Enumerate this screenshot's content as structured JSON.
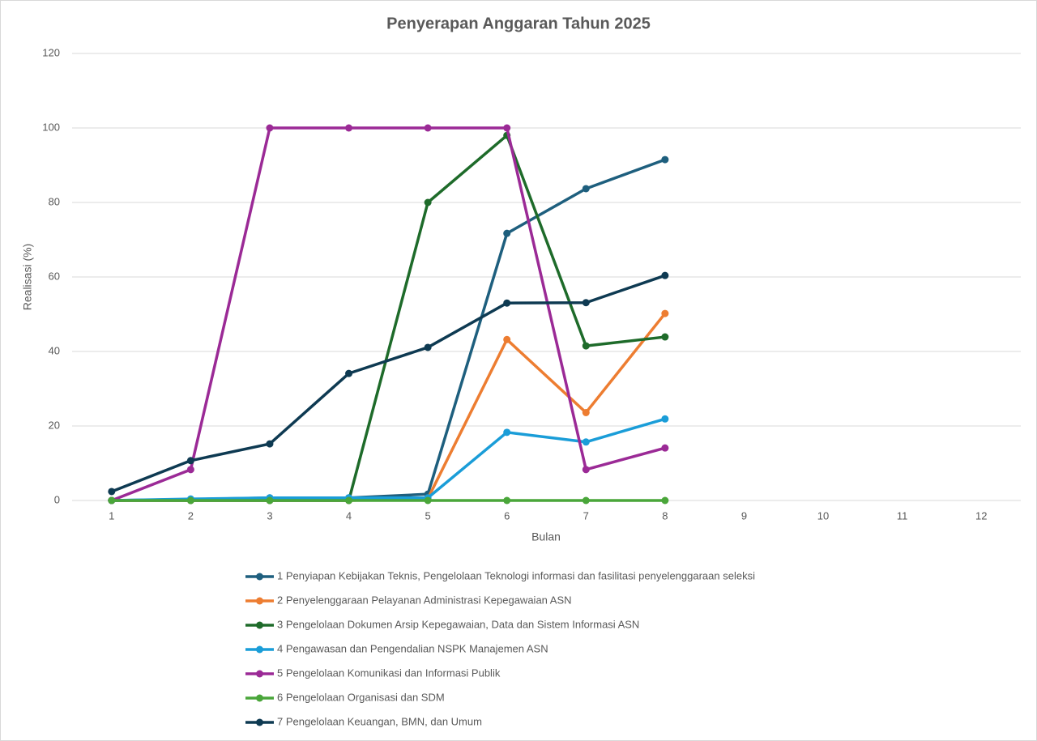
{
  "chart_data": {
    "type": "line",
    "title": "Penyerapan Anggaran Tahun 2025",
    "x_label": "Bulan",
    "y_label": "Realisasi (%)",
    "categories": [
      "1",
      "2",
      "3",
      "4",
      "5",
      "6",
      "7",
      "8",
      "9",
      "10",
      "11",
      "12"
    ],
    "ylim": [
      0,
      120
    ],
    "yticks": [
      0,
      20,
      40,
      60,
      80,
      100,
      120
    ],
    "grid": true,
    "legend": "bottom",
    "series": [
      {
        "name": "1 Penyiapan Kebijakan Teknis, Pengelolaan Teknologi informasi dan fasilitasi penyelenggaraan seleksi",
        "color": "#1e5f7e",
        "values": [
          0,
          0.3,
          0.7,
          0.7,
          1.7,
          71.7,
          83.7,
          91.5,
          null,
          null,
          null,
          null
        ]
      },
      {
        "name": "2 Penyelenggaraan Pelayanan Administrasi Kepegawaian ASN",
        "color": "#ed7d31",
        "values": [
          0,
          0,
          0,
          0,
          0.5,
          43.2,
          23.6,
          50.2,
          null,
          null,
          null,
          null
        ]
      },
      {
        "name": "3 Pengelolaan Dokumen Arsip Kepegawaian, Data dan Sistem Informasi ASN",
        "color": "#1e6b2a",
        "values": [
          0,
          0,
          0,
          0,
          80,
          98,
          41.5,
          43.9,
          null,
          null,
          null,
          null
        ]
      },
      {
        "name": "4 Pengawasan dan Pengendalian NSPK Manajemen ASN",
        "color": "#1a9dd8",
        "values": [
          0,
          0.4,
          0.7,
          0.7,
          0.7,
          18.3,
          15.7,
          21.9,
          null,
          null,
          null,
          null
        ]
      },
      {
        "name": "5 Pengelolaan Komunikasi dan Informasi Publik",
        "color": "#9b2a96",
        "values": [
          0,
          8.3,
          100,
          100,
          100,
          100,
          8.3,
          14.1,
          null,
          null,
          null,
          null
        ]
      },
      {
        "name": "6 Pengelolaan Organisasi dan SDM",
        "color": "#4aa63a",
        "values": [
          0,
          0,
          0,
          0,
          0,
          0,
          0,
          0,
          null,
          null,
          null,
          null
        ]
      },
      {
        "name": "7 Pengelolaan Keuangan, BMN, dan Umum",
        "color": "#0e3a52",
        "values": [
          2.4,
          10.7,
          15.2,
          34.1,
          41.1,
          53,
          53.1,
          60.4,
          null,
          null,
          null,
          null
        ]
      }
    ]
  }
}
